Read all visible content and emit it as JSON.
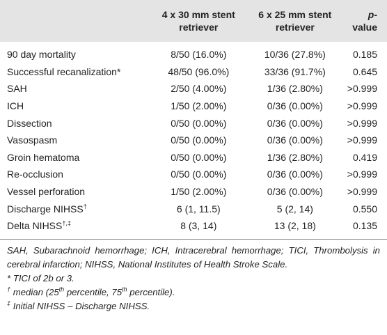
{
  "table": {
    "columns": [
      {
        "text": "4 x 30 mm stent retriever"
      },
      {
        "text": "6 x 25 mm stent retriever"
      },
      {
        "italic": "p",
        "text": "-value"
      }
    ],
    "rows": [
      {
        "label": "90 day mortality",
        "cells": [
          "8/50 (16.0%)",
          "10/36 (27.8%)",
          "0.185"
        ]
      },
      {
        "label": "Successful recanalization*",
        "cells": [
          "48/50 (96.0%)",
          "33/36 (91.7%)",
          "0.645"
        ]
      },
      {
        "label": "SAH",
        "cells": [
          "2/50 (4.00%)",
          "1/36 (2.80%)",
          ">0.999"
        ]
      },
      {
        "label": "ICH",
        "cells": [
          "1/50 (2.00%)",
          "0/36 (0.00%)",
          ">0.999"
        ]
      },
      {
        "label": "Dissection",
        "cells": [
          "0/50 (0.00%)",
          "0/36 (0.00%)",
          ">0.999"
        ]
      },
      {
        "label": "Vasospasm",
        "cells": [
          "0/50 (0.00%)",
          "0/36 (0.00%)",
          ">0.999"
        ]
      },
      {
        "label": "Groin hematoma",
        "cells": [
          "0/50 (0.00%)",
          "1/36 (2.80%)",
          "0.419"
        ]
      },
      {
        "label": "Re-occlusion",
        "cells": [
          "0/50 (0.00%)",
          "0/36 (0.00%)",
          ">0.999"
        ]
      },
      {
        "label": "Vessel perforation",
        "cells": [
          "1/50 (2.00%)",
          "0/36 (0.00%)",
          ">0.999"
        ]
      },
      {
        "label": "Discharge NIHSS",
        "mark": "†",
        "cells": [
          "6 (1, 11.5)",
          "5 (2, 14)",
          "0.550"
        ]
      },
      {
        "label": "Delta NIHSS",
        "mark": "†,‡",
        "cells": [
          "8 (3, 14)",
          "13 (2, 18)",
          "0.135"
        ]
      }
    ]
  },
  "notes": [
    {
      "text": "SAH, Subarachnoid hemorrhage; ICH, Intracerebral hemorrhage; TICI, Thrombolysis in cerebral infarction; NIHSS, National Institutes of Health Stroke Scale."
    },
    {
      "mark": "*",
      "text": "TICI of 2b or 3."
    },
    {
      "mark": "†",
      "parts": [
        "median (25",
        "th",
        " percentile, 75",
        "th",
        " percentile)."
      ]
    },
    {
      "mark": "‡",
      "text": "Initial NIHSS – Discharge NIHSS."
    }
  ]
}
